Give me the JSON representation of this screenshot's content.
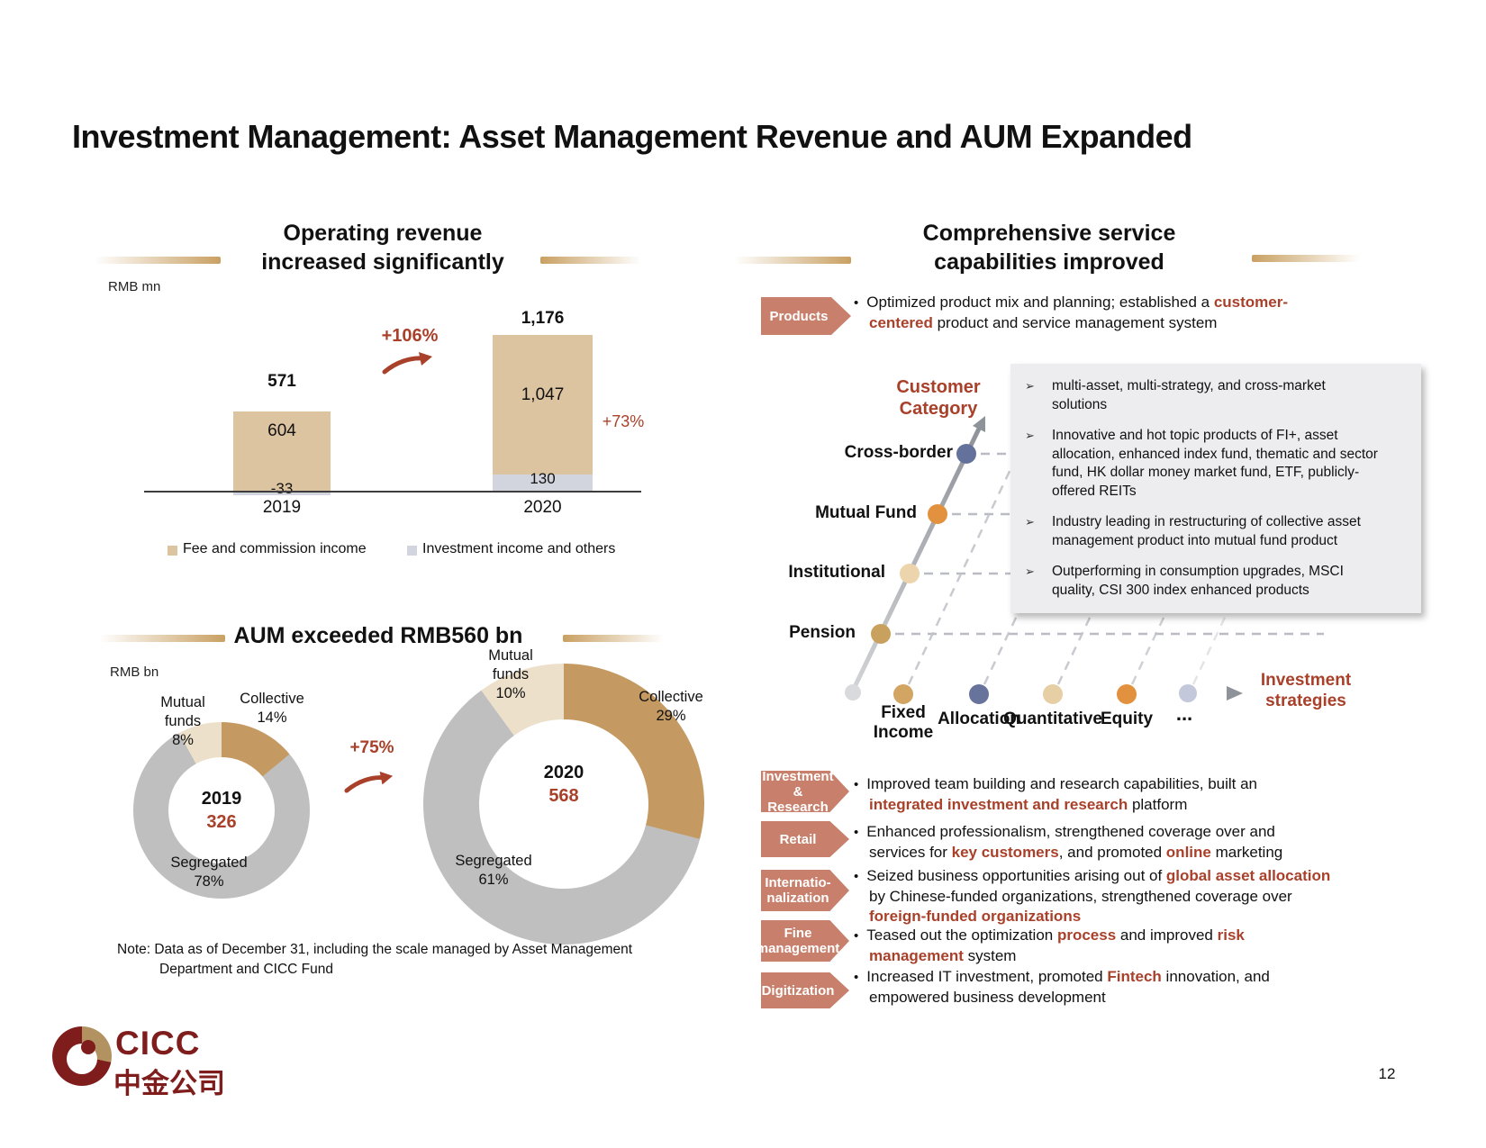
{
  "slide": {
    "title": "Investment Management: Asset Management Revenue and AUM Expanded",
    "page_number": "12",
    "note": {
      "line1": "Note: Data as of December 31, including the scale managed by Asset Management",
      "line2": "Department and CICC Fund"
    },
    "logo": {
      "latin": "CICC",
      "cjk": "中金公司"
    }
  },
  "chart_data": [
    {
      "type": "bar",
      "title": "Operating revenue\nincreased significantly",
      "unit": "RMB mn",
      "categories": [
        "2019",
        "2020"
      ],
      "series": [
        {
          "name": "Fee and commission income",
          "color": "#ddc4a1",
          "values": [
            604,
            1047
          ],
          "labels": [
            "604",
            "1,047"
          ]
        },
        {
          "name": "Investment income and others",
          "color": "#d3d5de",
          "values": [
            -33,
            130
          ],
          "labels": [
            "-33",
            "130"
          ]
        }
      ],
      "totals": [
        "571",
        "1,176"
      ],
      "growth": {
        "total": "+106%",
        "fee": "+73%"
      },
      "ylim": [
        -33,
        1176
      ],
      "grid": false,
      "legend_position": "bottom"
    },
    {
      "type": "donut",
      "title": "AUM exceeded RMB560 bn",
      "unit": "RMB bn",
      "growth": "+75%",
      "slice_colors": {
        "Collective": "#c49a62",
        "Segregated": "#bfbfbf",
        "Mutual funds": "#ede0cb"
      },
      "donuts": [
        {
          "year": "2019",
          "total": "326",
          "slices": [
            {
              "label": "Collective",
              "pct": 14,
              "pct_label": "14%"
            },
            {
              "label": "Segregated",
              "pct": 78,
              "pct_label": "78%"
            },
            {
              "label": "Mutual funds",
              "pct": 8,
              "pct_label": "8%"
            }
          ]
        },
        {
          "year": "2020",
          "total": "568",
          "slices": [
            {
              "label": "Collective",
              "pct": 29,
              "pct_label": "29%"
            },
            {
              "label": "Segregated",
              "pct": 61,
              "pct_label": "61%"
            },
            {
              "label": "Mutual funds",
              "pct": 10,
              "pct_label": "10%"
            }
          ]
        }
      ]
    }
  ],
  "right": {
    "title": "Comprehensive service\ncapabilities improved",
    "markers": {
      "dot": "•",
      "box": "➢"
    },
    "products": {
      "label": "Products",
      "text": [
        {
          "t": "Optimized product mix and planning; established a "
        },
        {
          "t": "customer-",
          "b": true
        },
        {
          "br": true
        },
        {
          "t": "centered",
          "b": true
        },
        {
          "t": " product and service management system"
        }
      ]
    },
    "matrix": {
      "y_axis_title": "Customer\nCategory",
      "x_axis_title": "Investment\nstrategies",
      "y_items": [
        "Cross-border",
        "Mutual Fund",
        "Institutional",
        "Pension"
      ],
      "x_items": [
        "Fixed\nIncome",
        "Allocation",
        "Quantitative",
        "Equity",
        "..."
      ],
      "dot_colors": {
        "cross_border": "#64719b",
        "mutual_fund": "#e2913f",
        "institutional": "#ecd5ac",
        "pension": "#c9a15e",
        "fixed_income": "#d2a562",
        "allocation": "#68739c",
        "quantitative": "#e6cfa4",
        "equity": "#e2913f",
        "more": "#c3c9da",
        "origin": "#d9dadd"
      },
      "box_bullets": [
        "multi-asset, multi-strategy, and cross-market\nsolutions",
        "Innovative and hot topic products of FI+, asset\nallocation, enhanced index fund, thematic and sector\nfund, HK dollar money market fund, ETF, publicly-\noffered REITs",
        "Industry leading in restructuring of collective asset\nmanagement product into mutual fund product",
        "Outperforming in consumption upgrades, MSCI\nquality, CSI 300 index enhanced products"
      ]
    },
    "sections": [
      {
        "label": "Investment &\nResearch",
        "text": [
          {
            "t": "Improved team building and research capabilities, built an"
          },
          {
            "br": true
          },
          {
            "t": "integrated investment and research",
            "b": true
          },
          {
            "t": " platform"
          }
        ]
      },
      {
        "label": "Retail",
        "text": [
          {
            "t": "Enhanced professionalism, strengthened coverage over and"
          },
          {
            "br": true
          },
          {
            "t": "services for "
          },
          {
            "t": "key customers",
            "b": true
          },
          {
            "t": ", and promoted "
          },
          {
            "t": "online",
            "b": true
          },
          {
            "t": " marketing"
          }
        ]
      },
      {
        "label": "Internatio-\nnalization",
        "text": [
          {
            "t": "Seized business opportunities arising out of "
          },
          {
            "t": "global asset allocation",
            "b": true
          },
          {
            "br": true
          },
          {
            "t": "by Chinese-funded organizations, strengthened coverage over"
          },
          {
            "br": true
          },
          {
            "t": "foreign-funded organizations",
            "b": true
          }
        ]
      },
      {
        "label": "Fine\nmanagement",
        "text": [
          {
            "t": "Teased out the optimization "
          },
          {
            "t": "process",
            "b": true
          },
          {
            "t": " and improved "
          },
          {
            "t": "risk",
            "b": true
          },
          {
            "br": true
          },
          {
            "t": "management",
            "b": true
          },
          {
            "t": " system"
          }
        ]
      },
      {
        "label": "Digitization",
        "text": [
          {
            "t": "Increased IT investment, promoted "
          },
          {
            "t": "Fintech",
            "b": true
          },
          {
            "t": " innovation, and"
          },
          {
            "br": true
          },
          {
            "t": "empowered business development"
          }
        ]
      }
    ]
  },
  "colors": {
    "accent_red": "#a9402a",
    "tag_salmon": "#c8806c",
    "deco_tan": "#c9a062"
  }
}
